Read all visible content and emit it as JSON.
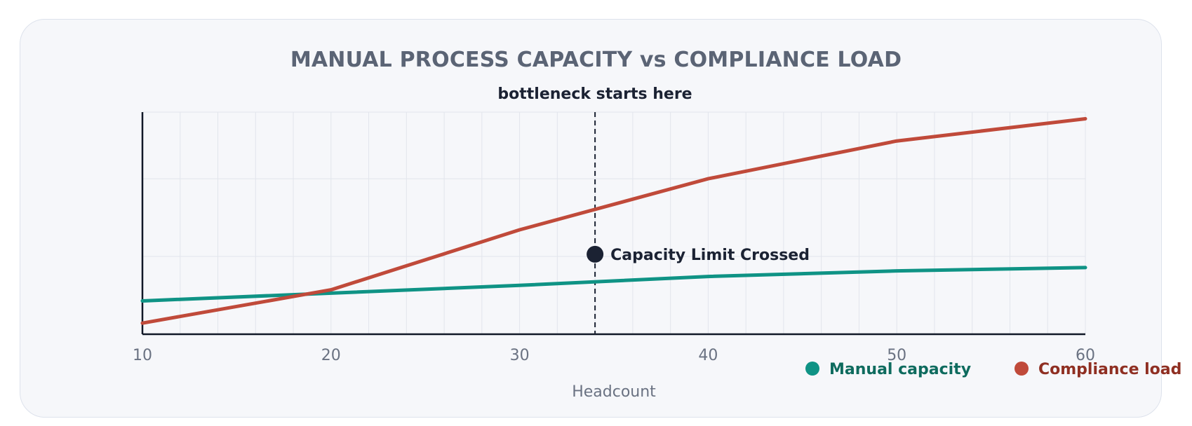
{
  "chart_data": {
    "type": "line",
    "title": "MANUAL PROCESS CAPACITY vs COMPLIANCE LOAD",
    "xlabel": "Headcount",
    "ylabel": "",
    "xlim": [
      10,
      60
    ],
    "ylim": [
      0,
      100
    ],
    "x_ticks": [
      10,
      20,
      30,
      40,
      50,
      60
    ],
    "grid": true,
    "legend_position": "bottom-right",
    "series": [
      {
        "name": "Manual capacity",
        "color": "#0f9385",
        "x": [
          10,
          20,
          30,
          40,
          50,
          60
        ],
        "values": [
          15,
          18.5,
          22,
          26,
          28.5,
          30
        ]
      },
      {
        "name": "Compliance load",
        "color": "#c04a3a",
        "x": [
          10,
          20,
          30,
          40,
          50,
          60
        ],
        "values": [
          5,
          20,
          47,
          70,
          87,
          97
        ]
      }
    ],
    "annotations": {
      "vline": {
        "x": 34,
        "label": "bottleneck starts here"
      },
      "point": {
        "x": 34,
        "y": 36,
        "label": "Capacity Limit Crossed"
      }
    },
    "legend_label_colors": [
      "#0e6b5e",
      "#8f2f22"
    ],
    "marker_color": "#1b2233"
  }
}
